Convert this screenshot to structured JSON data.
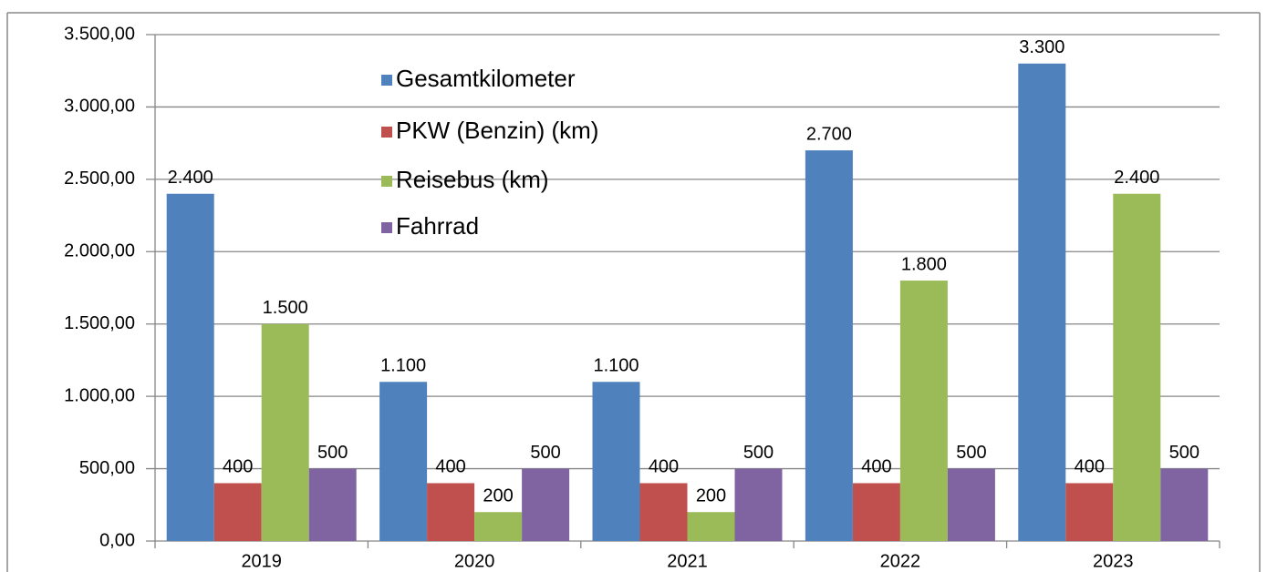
{
  "chart_data": {
    "type": "bar",
    "categories": [
      "2019",
      "2020",
      "2021",
      "2022",
      "2023"
    ],
    "series": [
      {
        "name": "Gesamtkilometer",
        "color": "#4f81bd",
        "values": [
          2400,
          1100,
          1100,
          2700,
          3300
        ],
        "value_labels": [
          "2.400",
          "1.100",
          "1.100",
          "2.700",
          "3.300"
        ]
      },
      {
        "name": "PKW (Benzin) (km)",
        "color": "#c0504d",
        "values": [
          400,
          400,
          400,
          400,
          400
        ],
        "value_labels": [
          "400",
          "400",
          "400",
          "400",
          "400"
        ]
      },
      {
        "name": "Reisebus (km)",
        "color": "#9bbb59",
        "values": [
          1500,
          200,
          200,
          1800,
          2400
        ],
        "value_labels": [
          "1.500",
          "200",
          "200",
          "1.800",
          "2.400"
        ]
      },
      {
        "name": "Fahrrad",
        "color": "#8064a2",
        "values": [
          500,
          500,
          500,
          500,
          500
        ],
        "value_labels": [
          "500",
          "500",
          "500",
          "500",
          "500"
        ]
      }
    ],
    "ylim": [
      0,
      3500
    ],
    "yticks": [
      {
        "value": 0,
        "label": "0,00"
      },
      {
        "value": 500,
        "label": "500,00"
      },
      {
        "value": 1000,
        "label": "1.000,00"
      },
      {
        "value": 1500,
        "label": "1.500,00"
      },
      {
        "value": 2000,
        "label": "2.000,00"
      },
      {
        "value": 2500,
        "label": "2.500,00"
      },
      {
        "value": 3000,
        "label": "3.000,00"
      },
      {
        "value": 3500,
        "label": "3.500,00"
      }
    ],
    "grid": true,
    "legend": "top"
  }
}
